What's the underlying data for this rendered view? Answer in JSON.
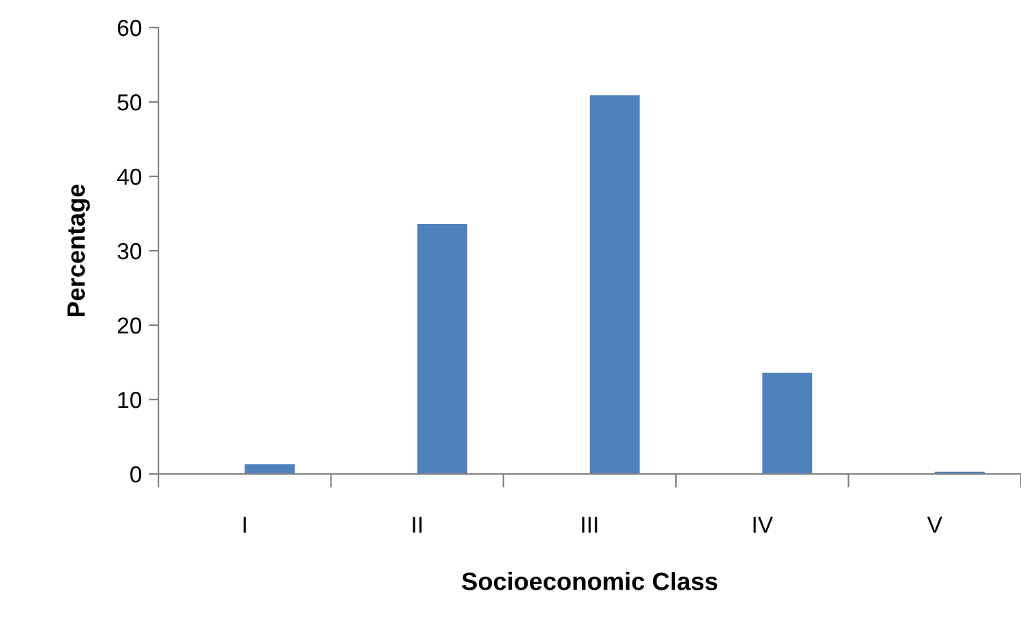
{
  "chart_data": {
    "type": "bar",
    "xlabel": "Socioeconomic Class",
    "ylabel": "Percentage",
    "categories": [
      "I",
      "II",
      "III",
      "IV",
      "V"
    ],
    "values": [
      1.3,
      33.6,
      50.9,
      13.6,
      0.3
    ],
    "color": "#4f81bd",
    "ylim": [
      0,
      60
    ],
    "yticks": [
      0,
      10,
      20,
      30,
      40,
      50,
      60
    ],
    "grid": false,
    "legend": false
  }
}
